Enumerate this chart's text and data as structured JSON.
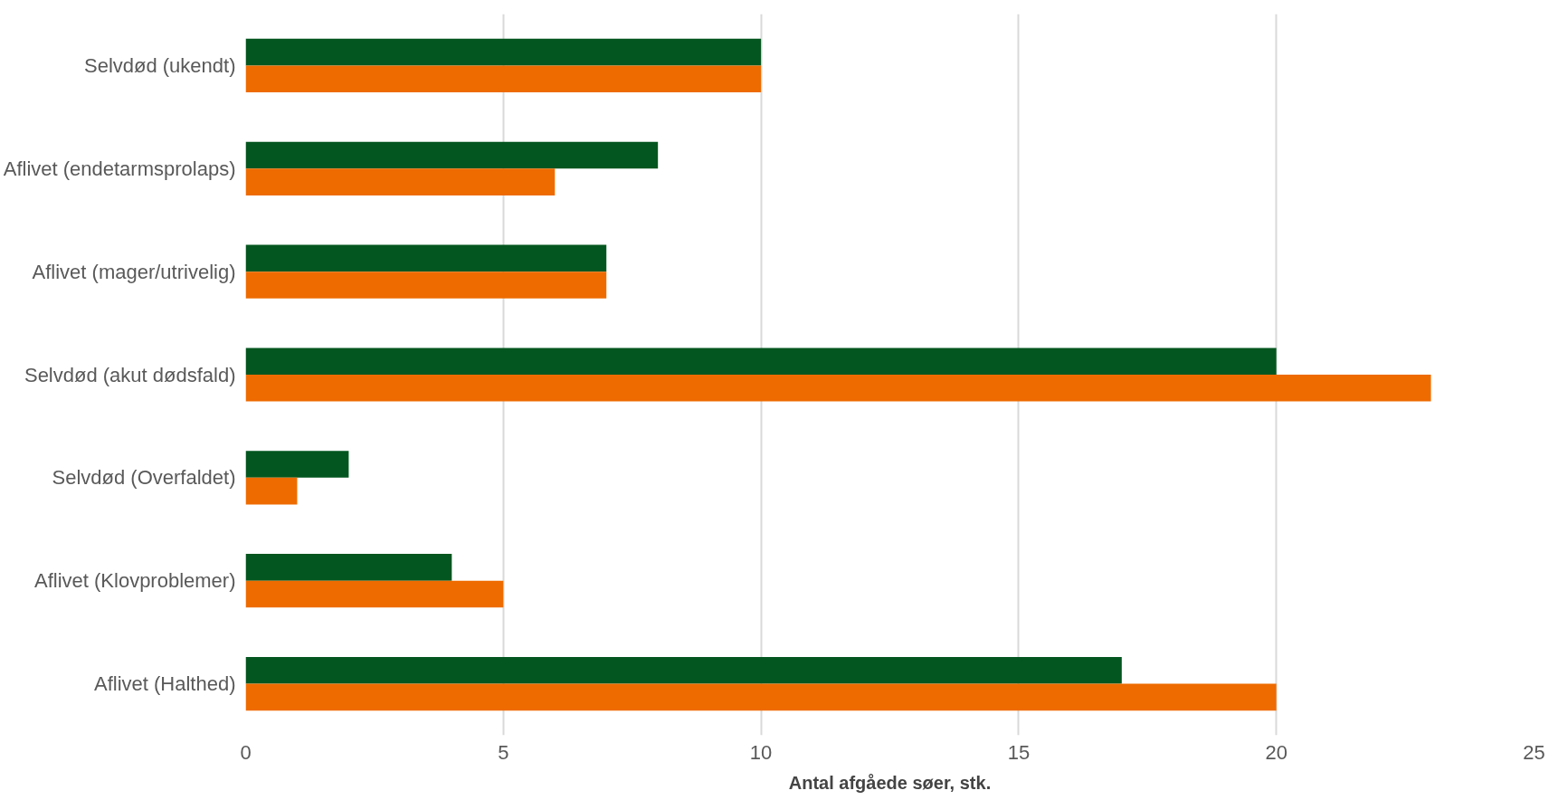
{
  "chart_data": {
    "type": "bar",
    "orientation": "horizontal",
    "xlabel": "Antal afgåede søer, stk.",
    "categories": [
      "Selvdød (ukendt)",
      "Aflivet (endetarmsprolaps)",
      "Aflivet (mager/utrivelig)",
      "Selvdød (akut dødsfald)",
      "Selvdød (Overfaldet)",
      "Aflivet (Klovproblemer)",
      "Aflivet (Halthed)"
    ],
    "series": [
      {
        "color": "#03561f",
        "values": [
          10,
          8,
          7,
          20,
          2,
          4,
          17
        ]
      },
      {
        "color": "#ee6b00",
        "values": [
          10,
          6,
          7,
          23,
          1,
          5,
          20
        ]
      }
    ],
    "xlim": [
      0,
      25
    ],
    "xticks": [
      0,
      5,
      10,
      15,
      20,
      25
    ],
    "grid": "x"
  }
}
